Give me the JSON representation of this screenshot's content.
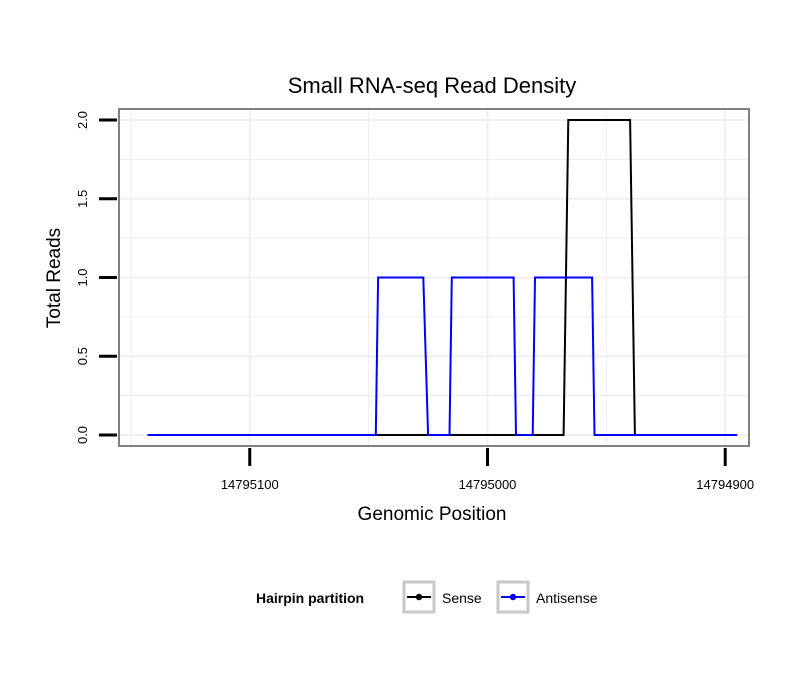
{
  "chart_data": {
    "type": "line",
    "title": "Small RNA-seq Read Density",
    "xlabel": "Genomic Position",
    "ylabel": "Total Reads",
    "xlim": [
      14795155,
      14794890
    ],
    "x_reversed": true,
    "ylim": [
      -0.07,
      2.07
    ],
    "x_ticks": [
      14795100,
      14795000,
      14794900
    ],
    "x_tick_labels": [
      "14795100",
      "14795000",
      14794900
    ],
    "y_ticks": [
      0.0,
      0.5,
      1.0,
      1.5,
      2.0
    ],
    "y_tick_labels": [
      "0.0",
      "0.5",
      "1.0",
      "1.5",
      "2.0"
    ],
    "grid": true,
    "legend": {
      "title": "Hairpin partition",
      "position": "bottom"
    },
    "series": [
      {
        "name": "Sense",
        "color": "#000000",
        "x": [
          14795143,
          14794968,
          14794966,
          14794940,
          14794938,
          14794895
        ],
        "y": [
          0,
          0,
          2,
          2,
          0,
          0
        ]
      },
      {
        "name": "Antisense",
        "color": "#0000ff",
        "x": [
          14795143,
          14795047,
          14795046,
          14795027,
          14795025,
          14795016,
          14795015,
          14794989,
          14794988,
          14794981,
          14794980,
          14794956,
          14794955,
          14794895
        ],
        "y": [
          0,
          0,
          1,
          1,
          0,
          0,
          1,
          1,
          0,
          0,
          1,
          1,
          0,
          0
        ]
      }
    ]
  }
}
